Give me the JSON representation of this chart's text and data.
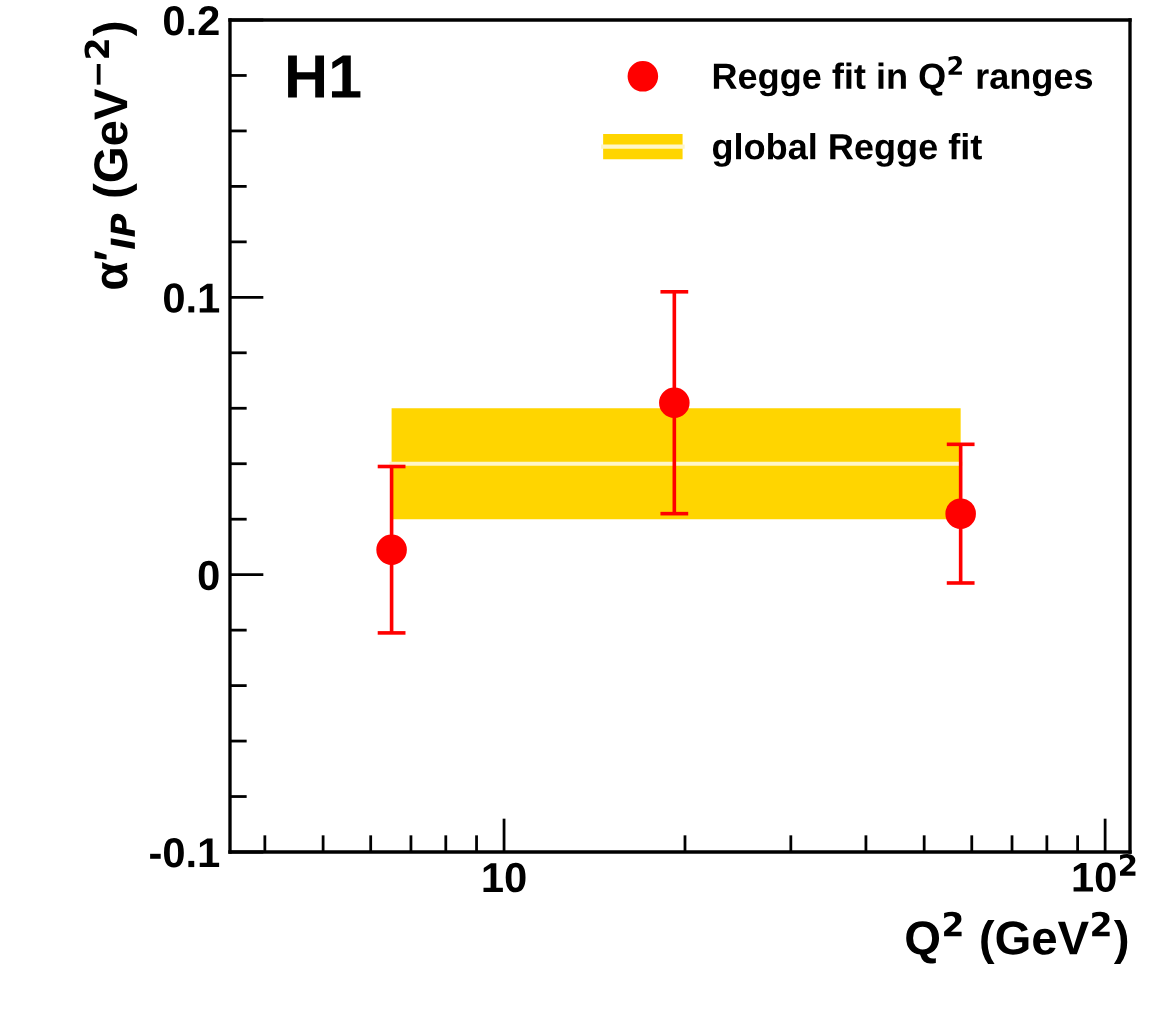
{
  "chart_data": {
    "type": "scatter",
    "xlabel": "Q$^{2}$ (GeV$^{2}$)",
    "ylabel": "α′$_{IP}$ (GeV$^{−2}$)",
    "annotations": [
      "H1"
    ],
    "log": "x",
    "xlim": [
      3.5,
      110
    ],
    "ylim": [
      -0.1,
      0.2
    ],
    "xticks": [
      10,
      {
        "value": 100,
        "label": "10$^{2}$"
      }
    ],
    "yticks": [
      -0.1,
      0,
      0.1,
      0.2
    ],
    "legend": "top right",
    "marker": "circle",
    "grid": false,
    "series": [
      {
        "name": "Regge fit in Q$^{2}$ ranges",
        "color": "#ff0000",
        "x": [
          6.5,
          19.2,
          57.5
        ],
        "values": [
          0.009,
          0.062,
          0.022
        ],
        "errors": [
          0.03,
          0.04,
          0.025
        ]
      },
      {
        "name": "global Regge fit",
        "type": "line",
        "marker": "none",
        "color": "#fff6c8",
        "x": [
          6.5,
          57.5
        ],
        "values": [
          0.04,
          0.04
        ],
        "lower": [
          0.02,
          0.02
        ],
        "upper": [
          0.06,
          0.06
        ]
      }
    ]
  }
}
